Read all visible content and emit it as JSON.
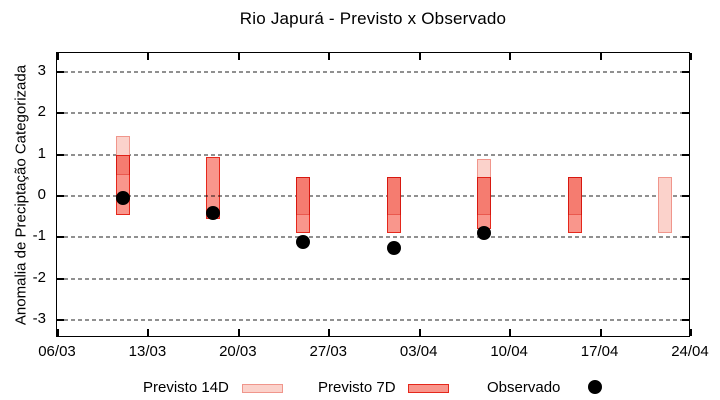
{
  "title": "Rio Japurá - Previsto x Observado",
  "chart_data": {
    "type": "bar",
    "subtype": "forecast-range-bars-with-observed-points",
    "title": "Rio Japurá - Previsto x Observado",
    "xlabel": "",
    "ylabel": "Anomalia de Preciptação Categorizada",
    "ylim": [
      -3.45,
      3.45
    ],
    "yticks": [
      3,
      2,
      1,
      0,
      -1,
      -2,
      -3
    ],
    "xticks": [
      "06/03",
      "13/03",
      "20/03",
      "27/03",
      "03/04",
      "10/04",
      "17/04",
      "24/04"
    ],
    "grid": "horizontal-dashed",
    "grid_color": "#909090",
    "axis_color": "#000000",
    "legend_position": "bottom",
    "series": [
      {
        "name": "Previsto 14D",
        "type": "range-bar",
        "fill": "#fbd2cb",
        "border": "#f0968c",
        "data": [
          {
            "date": "11/03",
            "low": 0.5,
            "high": 1.45
          },
          {
            "date": "25/03",
            "low": -0.45,
            "high": 0.45
          },
          {
            "date": "01/04",
            "low": -0.45,
            "high": 0.45
          },
          {
            "date": "08/04",
            "low": -0.45,
            "high": 0.9
          },
          {
            "date": "15/04",
            "low": -0.45,
            "high": 0.45
          },
          {
            "date": "22/04",
            "low": -0.9,
            "high": 0.45
          }
        ]
      },
      {
        "name": "Previsto 7D",
        "type": "range-bar",
        "fill": "#f9968c",
        "border": "#e5281c",
        "data": [
          {
            "date": "11/03",
            "low": -0.45,
            "high": 1.0
          },
          {
            "date": "18/03",
            "low": -0.55,
            "high": 0.95
          },
          {
            "date": "25/03",
            "low": -0.9,
            "high": 0.45
          },
          {
            "date": "01/04",
            "low": -0.9,
            "high": 0.45
          },
          {
            "date": "08/04",
            "low": -0.8,
            "high": 0.45
          },
          {
            "date": "15/04",
            "low": -0.9,
            "high": 0.45
          }
        ]
      },
      {
        "name": "Observado",
        "type": "scatter",
        "color": "#000000",
        "data": [
          {
            "date": "11/03",
            "value": -0.05
          },
          {
            "date": "18/03",
            "value": -0.4
          },
          {
            "date": "25/03",
            "value": -1.1
          },
          {
            "date": "01/04",
            "value": -1.25
          },
          {
            "date": "08/04",
            "value": -0.9
          }
        ]
      }
    ]
  }
}
